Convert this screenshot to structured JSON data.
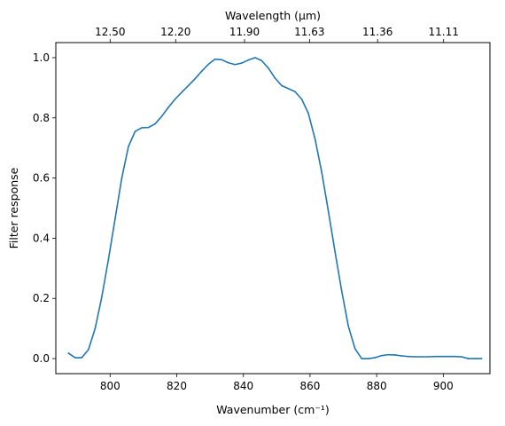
{
  "chart_data": {
    "type": "line",
    "xlabel": "Wavenumber (cm⁻¹)",
    "ylabel": "Filter response",
    "top_xlabel": "Wavelength (μm)",
    "xlim": [
      884.5,
      914
    ],
    "ylim": [
      -0.05,
      1.05
    ],
    "x_ticks": [
      800,
      820,
      840,
      860,
      880,
      900
    ],
    "y_ticks": [
      "0.0",
      "0.2",
      "0.4",
      "0.6",
      "0.8",
      "1.0"
    ],
    "top_ticks": [
      {
        "label": "12.50",
        "wavenumber": 800.0
      },
      {
        "label": "12.20",
        "wavenumber": 819.67
      },
      {
        "label": "11.90",
        "wavenumber": 840.34
      },
      {
        "label": "11.63",
        "wavenumber": 859.85
      },
      {
        "label": "11.36",
        "wavenumber": 880.28
      },
      {
        "label": "11.11",
        "wavenumber": 900.09
      }
    ],
    "grid": false,
    "color": "#1f77b4",
    "series": [
      {
        "x": [
          787.5,
          789.5,
          791.5,
          793.5,
          795.5,
          797.5,
          799.5,
          801.5,
          803.5,
          805.5,
          807.5,
          809.5,
          811.5,
          813.5,
          815.5,
          817.5,
          819.5,
          821.5,
          823.5,
          825.5,
          827.5,
          829.5,
          831.5,
          833.5,
          835.5,
          837.5,
          839.5,
          841.5,
          843.5,
          845.5,
          847.5,
          849.5,
          851.5,
          853.5,
          855.5,
          857.5,
          859.5,
          861.5,
          863.5,
          865.5,
          867.5,
          869.5,
          871.5,
          873.5,
          875.5,
          877.5,
          879.5,
          881.5,
          883.5,
          885.5,
          887.5,
          889.5,
          891.5,
          893.5,
          895.5,
          897.5,
          899.5,
          901.5,
          903.5,
          905.5,
          907.5,
          909.5,
          911.5
        ],
        "y": [
          0.018,
          0.003,
          0.003,
          0.03,
          0.1,
          0.205,
          0.33,
          0.465,
          0.6,
          0.705,
          0.755,
          0.767,
          0.768,
          0.78,
          0.805,
          0.835,
          0.862,
          0.885,
          0.907,
          0.93,
          0.955,
          0.978,
          0.995,
          0.993,
          0.983,
          0.977,
          0.982,
          0.992,
          1.0,
          0.99,
          0.965,
          0.932,
          0.907,
          0.897,
          0.887,
          0.862,
          0.815,
          0.73,
          0.62,
          0.49,
          0.355,
          0.225,
          0.108,
          0.033,
          0.0,
          0.0,
          0.003,
          0.01,
          0.013,
          0.012,
          0.009,
          0.007,
          0.006,
          0.006,
          0.006,
          0.007,
          0.007,
          0.007,
          0.007,
          0.006,
          0.0,
          0.0,
          0.0
        ]
      }
    ]
  }
}
